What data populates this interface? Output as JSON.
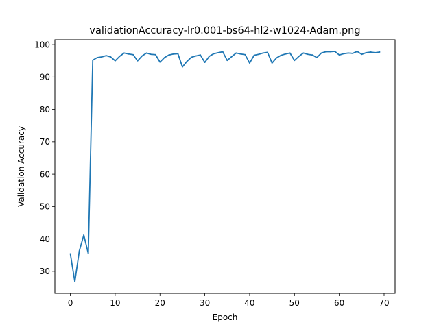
{
  "chart_data": {
    "type": "line",
    "title": "validationAccuracy-lr0.001-bs64-hl2-w1024-Adam.png",
    "xlabel": "Epoch",
    "ylabel": "Validation Accuracy",
    "xlim": [
      -3.45,
      72.45
    ],
    "ylim": [
      23.2,
      101.5
    ],
    "xticks": [
      0,
      10,
      20,
      30,
      40,
      50,
      60,
      70
    ],
    "yticks": [
      30,
      40,
      50,
      60,
      70,
      80,
      90,
      100
    ],
    "grid": false,
    "line_color": "#1f77b4",
    "series": [
      {
        "x": [
          0,
          1,
          2,
          3,
          4,
          5,
          6,
          7,
          8,
          9,
          10,
          11,
          12,
          13,
          14,
          15,
          16,
          17,
          18,
          19,
          20,
          21,
          22,
          23,
          24,
          25,
          26,
          27,
          28,
          29,
          30,
          31,
          32,
          33,
          34,
          35,
          36,
          37,
          38,
          39,
          40,
          41,
          42,
          43,
          44,
          45,
          46,
          47,
          48,
          49,
          50,
          51,
          52,
          53,
          54,
          55,
          56,
          57,
          58,
          59,
          60,
          61,
          62,
          63,
          64,
          65,
          66,
          67,
          68,
          69
        ],
        "values": [
          35.4,
          26.8,
          36.3,
          41.2,
          35.5,
          95.2,
          96.0,
          96.2,
          96.6,
          96.2,
          95.0,
          96.4,
          97.4,
          97.1,
          96.9,
          95.0,
          96.5,
          97.4,
          97.0,
          96.9,
          94.6,
          96.0,
          96.8,
          97.1,
          97.2,
          93.1,
          94.8,
          96.1,
          96.5,
          96.8,
          94.5,
          96.4,
          97.2,
          97.5,
          97.8,
          95.1,
          96.3,
          97.4,
          97.1,
          96.9,
          94.3,
          96.7,
          97.0,
          97.4,
          97.6,
          94.3,
          95.9,
          96.7,
          97.1,
          97.4,
          95.1,
          96.4,
          97.4,
          97.0,
          96.8,
          96.0,
          97.4,
          97.8,
          97.8,
          97.9,
          96.8,
          97.2,
          97.4,
          97.3,
          97.9,
          97.0,
          97.5,
          97.7,
          97.5,
          97.7
        ]
      }
    ]
  }
}
